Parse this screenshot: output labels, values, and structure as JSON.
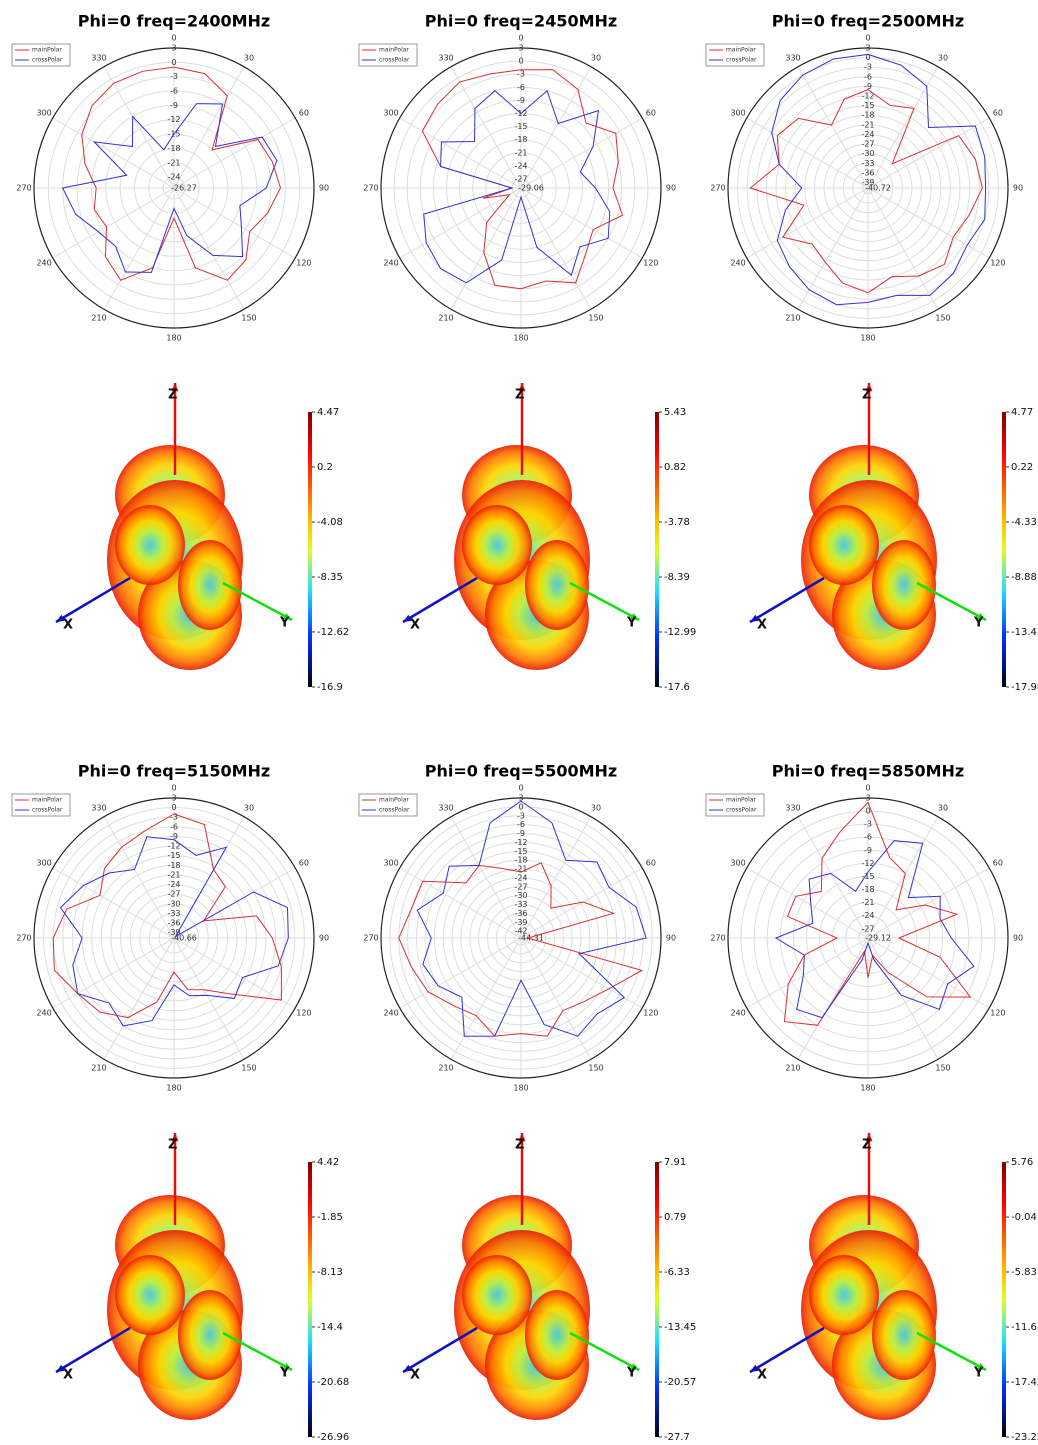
{
  "chart_data": [
    {
      "type": "polar",
      "title": "Phi=0 freq=2400MHz",
      "legend": "upper left",
      "rlim": [
        -26.27,
        3
      ],
      "rticks": [
        3,
        0,
        -3,
        -6,
        -9,
        -12,
        -15,
        -18,
        -21,
        -24
      ],
      "thetaticks": [
        0,
        30,
        60,
        90,
        120,
        150,
        180,
        210,
        240,
        270,
        300,
        330
      ],
      "theta": [
        0,
        15,
        30,
        45,
        60,
        75,
        90,
        105,
        120,
        135,
        150,
        165,
        180,
        195,
        210,
        225,
        240,
        255,
        270,
        285,
        300,
        315,
        330,
        345
      ],
      "series": [
        {
          "name": "mainPolar",
          "color": "#d83030",
          "values": [
            -1,
            -1.5,
            -4,
            -15,
            -6,
            -5,
            -4,
            -6,
            -8,
            -5,
            -4,
            -9,
            -20,
            -9,
            -4,
            -6,
            -10,
            -9,
            -10,
            -7,
            -4,
            -2,
            -1,
            -1
          ]
        },
        {
          "name": "crossPolar",
          "color": "#3030d8",
          "values": [
            -15,
            -8,
            -6,
            -14,
            -5,
            -4,
            -7,
            -12,
            -10,
            -6,
            -10,
            -16,
            -22,
            -8,
            -6,
            -9,
            -8,
            -5,
            -3,
            -16,
            -7,
            -14,
            -9,
            -18
          ]
        }
      ]
    },
    {
      "type": "polar",
      "title": "Phi=0 freq=2450MHz",
      "legend": "upper left",
      "rlim": [
        -29.06,
        3
      ],
      "rticks": [
        3,
        0,
        -3,
        -6,
        -9,
        -12,
        -15,
        -18,
        -21,
        -24,
        -27
      ],
      "thetaticks": [
        0,
        30,
        60,
        90,
        120,
        150,
        180,
        210,
        240,
        270,
        300,
        330
      ],
      "theta": [
        0,
        15,
        30,
        45,
        60,
        75,
        90,
        105,
        120,
        135,
        150,
        165,
        180,
        195,
        210,
        225,
        240,
        255,
        270,
        285,
        300,
        315,
        330,
        345
      ],
      "series": [
        {
          "name": "mainPolar",
          "color": "#d83030",
          "values": [
            -2,
            -1,
            -3,
            -8,
            -4,
            -6,
            -8,
            -5,
            -10,
            -8,
            -4,
            -7,
            -6,
            -6,
            -12,
            -18,
            -26,
            -20,
            -27,
            -10,
            -3,
            -2,
            -1,
            -2
          ]
        },
        {
          "name": "crossPolar",
          "color": "#3030d8",
          "values": [
            -12,
            -6,
            -12,
            -4,
            -10,
            -15,
            -12,
            -8,
            -6,
            -10,
            -6,
            -15,
            -27,
            -12,
            -4,
            -3,
            -4,
            -6,
            -27,
            -10,
            -8,
            -14,
            -8,
            -6
          ]
        }
      ]
    },
    {
      "type": "polar",
      "title": "Phi=0 freq=2500MHz",
      "legend": "upper left",
      "rlim": [
        -40.72,
        3
      ],
      "rticks": [
        3,
        0,
        -3,
        -6,
        -9,
        -12,
        -15,
        -18,
        -21,
        -24,
        -27,
        -30,
        -33,
        -36,
        -39
      ],
      "thetaticks": [
        0,
        30,
        60,
        90,
        120,
        150,
        180,
        210,
        240,
        270,
        300,
        330
      ],
      "theta": [
        0,
        15,
        30,
        45,
        60,
        75,
        90,
        105,
        120,
        135,
        150,
        165,
        180,
        195,
        210,
        225,
        240,
        255,
        270,
        285,
        300,
        315,
        330,
        345
      ],
      "series": [
        {
          "name": "mainPolar",
          "color": "#d83030",
          "values": [
            -10,
            -14,
            -12,
            -30,
            -8,
            -6,
            -5,
            -8,
            -10,
            -7,
            -9,
            -12,
            -8,
            -10,
            -14,
            -16,
            -10,
            -20,
            -4,
            -12,
            -8,
            -10,
            -18,
            -12
          ]
        },
        {
          "name": "crossPolar",
          "color": "#3030d8",
          "values": [
            1,
            -1,
            -4,
            -14,
            -2,
            -3,
            -4,
            -3,
            -5,
            -3,
            -2,
            -6,
            -5,
            -3,
            -4,
            -6,
            -8,
            -14,
            -20,
            -12,
            -6,
            -2,
            0,
            1
          ]
        }
      ]
    },
    {
      "type": "surface3d",
      "xlabel": "X",
      "ylabel": "Y",
      "zlabel": "Z",
      "clim": [
        -16.9,
        4.47
      ],
      "cticks": [
        4.47,
        0.2,
        -4.08,
        -8.35,
        -12.62,
        -16.9
      ]
    },
    {
      "type": "surface3d",
      "xlabel": "X",
      "ylabel": "Y",
      "zlabel": "Z",
      "clim": [
        -17.6,
        5.43
      ],
      "cticks": [
        5.43,
        0.82,
        -3.78,
        -8.39,
        -12.99,
        -17.6
      ]
    },
    {
      "type": "surface3d",
      "xlabel": "X",
      "ylabel": "Y",
      "zlabel": "Z",
      "clim": [
        -17.98,
        4.77
      ],
      "cticks": [
        4.77,
        0.22,
        -4.33,
        -8.88,
        -13.43,
        -17.98
      ]
    },
    {
      "type": "polar",
      "title": "Phi=0 freq=5150MHz",
      "legend": "upper left",
      "rlim": [
        -40.66,
        3
      ],
      "rticks": [
        3,
        0,
        -3,
        -6,
        -9,
        -12,
        -15,
        -18,
        -21,
        -24,
        -27,
        -30,
        -33,
        -36,
        -39
      ],
      "thetaticks": [
        0,
        30,
        60,
        90,
        120,
        150,
        180,
        210,
        240,
        270,
        300,
        330
      ],
      "theta": [
        0,
        15,
        30,
        45,
        60,
        75,
        90,
        105,
        120,
        135,
        150,
        165,
        180,
        195,
        210,
        225,
        240,
        255,
        270,
        285,
        300,
        315,
        330,
        345
      ],
      "series": [
        {
          "name": "mainPolar",
          "color": "#d83030",
          "values": [
            -2,
            -4,
            -16,
            -18,
            -30,
            -14,
            -10,
            -6,
            -2,
            -16,
            -22,
            -24,
            -30,
            -20,
            -12,
            -8,
            -6,
            -2,
            -3,
            -6,
            -14,
            -10,
            -8,
            -6
          ]
        },
        {
          "name": "crossPolar",
          "color": "#3030d8",
          "values": [
            -10,
            -14,
            -8,
            -40,
            -12,
            -4,
            -5,
            -7,
            -16,
            -14,
            -20,
            -22,
            -26,
            -14,
            -9,
            -12,
            -6,
            -8,
            -12,
            -4,
            -8,
            -12,
            -16,
            -8
          ]
        }
      ]
    },
    {
      "type": "polar",
      "title": "Phi=0 freq=5500MHz",
      "legend": "upper left",
      "rlim": [
        -44.31,
        3
      ],
      "rticks": [
        3,
        0,
        -3,
        -6,
        -9,
        -12,
        -15,
        -18,
        -21,
        -24,
        -27,
        -30,
        -33,
        -36,
        -39,
        -42
      ],
      "thetaticks": [
        0,
        30,
        60,
        90,
        120,
        150,
        180,
        210,
        240,
        270,
        300,
        330
      ],
      "theta": [
        0,
        15,
        30,
        45,
        60,
        75,
        90,
        105,
        120,
        135,
        150,
        165,
        180,
        195,
        210,
        225,
        240,
        255,
        270,
        285,
        300,
        315,
        330,
        345
      ],
      "series": [
        {
          "name": "mainPolar",
          "color": "#d83030",
          "values": [
            -22,
            -18,
            -24,
            -30,
            -20,
            -12,
            -42,
            -2,
            -10,
            -14,
            -16,
            -10,
            -12,
            -10,
            -14,
            -12,
            -8,
            -6,
            -3,
            -6,
            -6,
            -18,
            -16,
            -20
          ]
        },
        {
          "name": "crossPolar",
          "color": "#3030d8",
          "values": [
            2,
            -4,
            -14,
            -8,
            -10,
            -4,
            -2,
            -24,
            -4,
            -8,
            -6,
            -14,
            -30,
            -10,
            -6,
            -16,
            -12,
            -10,
            -14,
            -8,
            -14,
            -10,
            -16,
            -4
          ]
        }
      ]
    },
    {
      "type": "polar",
      "title": "Phi=0 freq=5850MHz",
      "legend": "upper left",
      "rlim": [
        -29.12,
        3
      ],
      "rticks": [
        3,
        0,
        -3,
        -6,
        -9,
        -12,
        -15,
        -18,
        -21,
        -24,
        -27
      ],
      "thetaticks": [
        0,
        30,
        60,
        90,
        120,
        150,
        180,
        210,
        240,
        270,
        300,
        330
      ],
      "theta": [
        0,
        15,
        30,
        45,
        60,
        75,
        90,
        105,
        120,
        135,
        150,
        165,
        180,
        195,
        210,
        225,
        240,
        255,
        270,
        285,
        300,
        315,
        330,
        345
      ],
      "series": [
        {
          "name": "mainPolar",
          "color": "#d83030",
          "values": [
            2,
            -10,
            -12,
            -20,
            -14,
            -8,
            -22,
            -12,
            -2,
            -10,
            -20,
            -25,
            -20,
            -26,
            -6,
            -2,
            -8,
            -14,
            -22,
            -10,
            -10,
            -14,
            -8,
            -4
          ]
        },
        {
          "name": "crossPolar",
          "color": "#3030d8",
          "values": [
            -14,
            -6,
            -4,
            -16,
            -10,
            -12,
            -10,
            -4,
            -8,
            -6,
            -14,
            -24,
            -28,
            -24,
            -8,
            -6,
            -12,
            -14,
            -8,
            -16,
            -14,
            -10,
            -12,
            -18
          ]
        }
      ]
    },
    {
      "type": "surface3d",
      "xlabel": "X",
      "ylabel": "Y",
      "zlabel": "Z",
      "clim": [
        -26.96,
        4.42
      ],
      "cticks": [
        4.42,
        -1.85,
        -8.13,
        -14.4,
        -20.68,
        -26.96
      ]
    },
    {
      "type": "surface3d",
      "xlabel": "X",
      "ylabel": "Y",
      "zlabel": "Z",
      "clim": [
        -27.7,
        7.91
      ],
      "cticks": [
        7.91,
        0.79,
        -6.33,
        -13.45,
        -20.57,
        -27.7
      ]
    },
    {
      "type": "surface3d",
      "xlabel": "X",
      "ylabel": "Y",
      "zlabel": "Z",
      "clim": [
        -23.22,
        5.76
      ],
      "cticks": [
        5.76,
        -0.04,
        -5.83,
        -11.63,
        -17.42,
        -23.22
      ]
    }
  ]
}
